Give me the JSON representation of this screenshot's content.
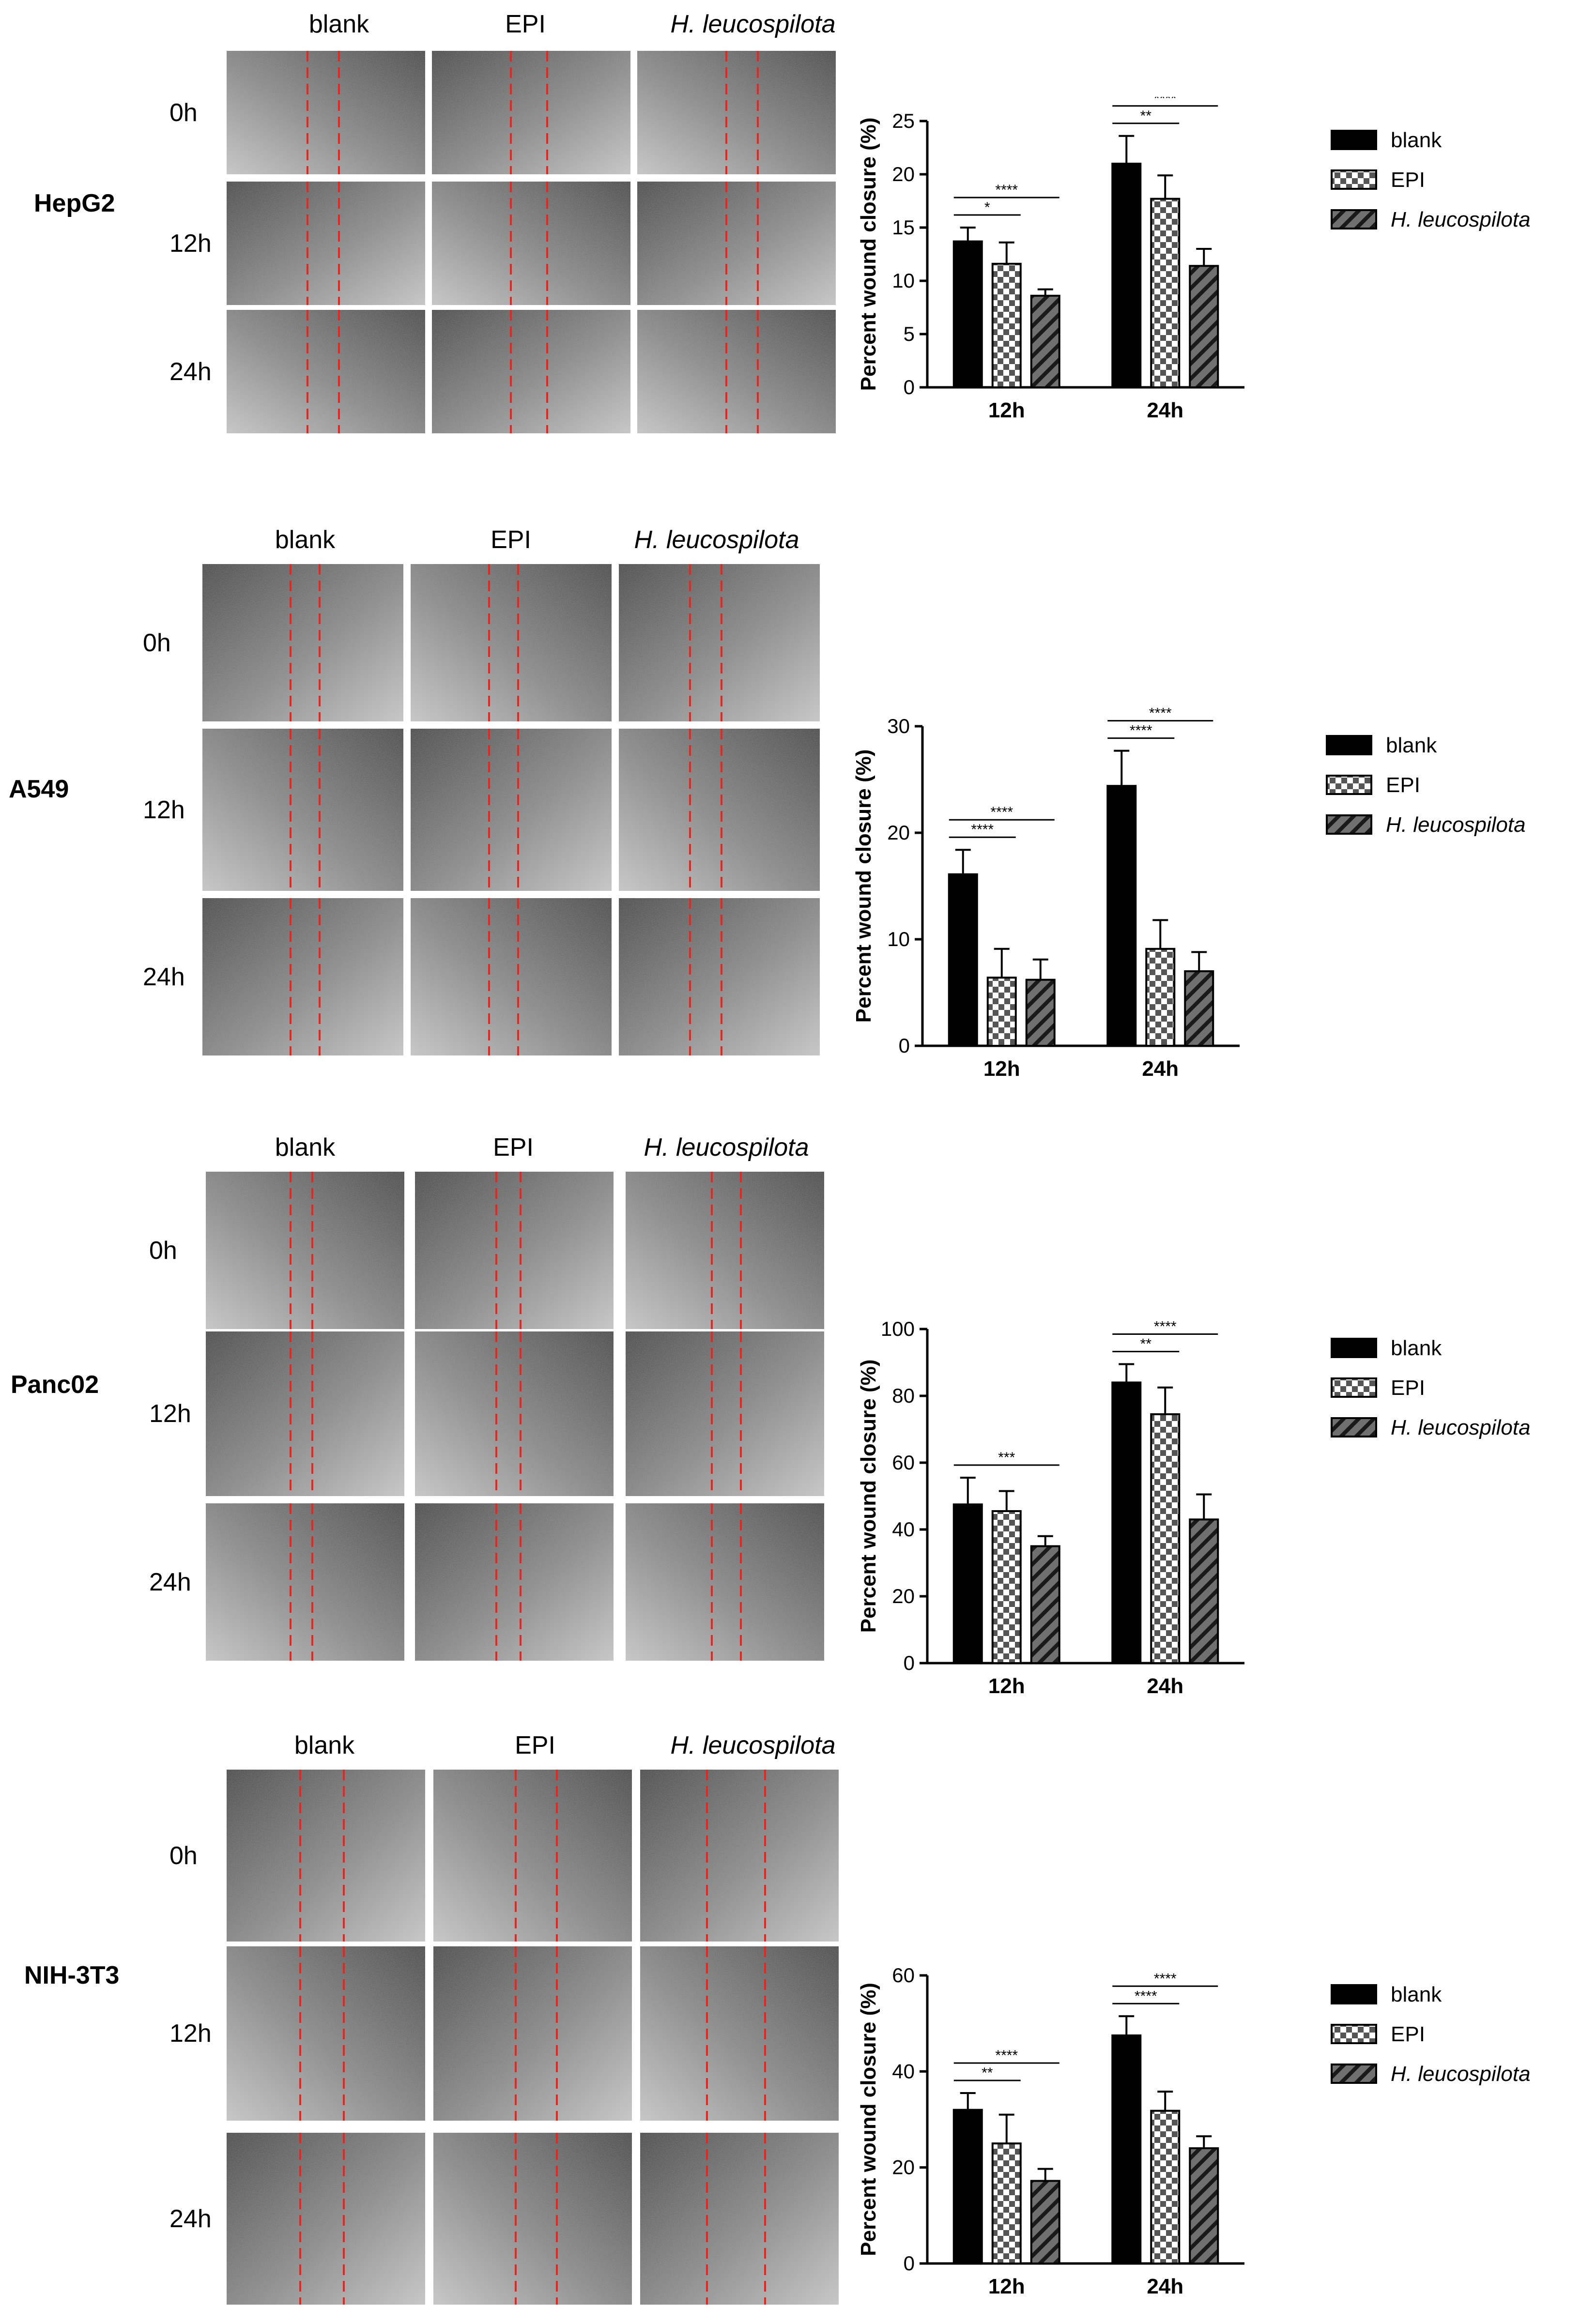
{
  "figure": {
    "columns": [
      "blank",
      "EPI",
      "H. leucospilota"
    ],
    "timepoints": [
      "0h",
      "12h",
      "24h"
    ]
  },
  "panels": [
    {
      "cell_line": "HepG2",
      "columns": [
        "blank",
        "EPI",
        "H. leucospilota"
      ],
      "times": [
        "0h",
        "12h",
        "24h"
      ]
    },
    {
      "cell_line": "A549",
      "columns": [
        "blank",
        "EPI",
        "H. leucospilota"
      ],
      "times": [
        "0h",
        "12h",
        "24h"
      ]
    },
    {
      "cell_line": "Panc02",
      "columns": [
        "blank",
        "EPI",
        "H. leucospilota"
      ],
      "times": [
        "0h",
        "12h",
        "24h"
      ]
    },
    {
      "cell_line": "NIH-3T3",
      "columns": [
        "blank",
        "EPI",
        "H. leucospilota"
      ],
      "times": [
        "0h",
        "12h",
        "24h"
      ]
    }
  ],
  "colors": {
    "blank": "#000000",
    "wound_line": "#e8261f",
    "axis": "#000000"
  },
  "chart_data": [
    {
      "type": "bar",
      "panel": "HepG2",
      "categories": [
        "12h",
        "24h"
      ],
      "ylabel": "Percent wound closure (%)",
      "ylim": [
        0,
        25
      ],
      "yticks": [
        0,
        5,
        10,
        15,
        20,
        25
      ],
      "legend": "right",
      "series": [
        {
          "name": "blank",
          "values": [
            13.7,
            21.0
          ],
          "errors": [
            1.3,
            2.6
          ],
          "pattern": "solid"
        },
        {
          "name": "EPI",
          "values": [
            11.6,
            17.7
          ],
          "errors": [
            2.0,
            2.2
          ],
          "pattern": "checker"
        },
        {
          "name": "H. leucospilota",
          "values": [
            8.6,
            11.4
          ],
          "errors": [
            0.6,
            1.6
          ],
          "pattern": "diagonal"
        }
      ],
      "significance": [
        {
          "category": "12h",
          "from": "blank",
          "to": "EPI",
          "label": "*"
        },
        {
          "category": "12h",
          "from": "blank",
          "to": "H. leucospilota",
          "label": "****"
        },
        {
          "category": "24h",
          "from": "blank",
          "to": "EPI",
          "label": "**"
        },
        {
          "category": "24h",
          "from": "blank",
          "to": "H. leucospilota",
          "label": "****"
        }
      ]
    },
    {
      "type": "bar",
      "panel": "A549",
      "categories": [
        "12h",
        "24h"
      ],
      "ylabel": "Percent wound closure (%)",
      "ylim": [
        0,
        30
      ],
      "yticks": [
        0,
        10,
        20,
        30
      ],
      "legend": "right",
      "series": [
        {
          "name": "blank",
          "values": [
            16.1,
            24.4
          ],
          "errors": [
            2.3,
            3.3
          ],
          "pattern": "solid"
        },
        {
          "name": "EPI",
          "values": [
            6.4,
            9.1
          ],
          "errors": [
            2.7,
            2.7
          ],
          "pattern": "checker"
        },
        {
          "name": "H. leucospilota",
          "values": [
            6.2,
            7.0
          ],
          "errors": [
            1.9,
            1.8
          ],
          "pattern": "diagonal"
        }
      ],
      "significance": [
        {
          "category": "12h",
          "from": "blank",
          "to": "EPI",
          "label": "****"
        },
        {
          "category": "12h",
          "from": "blank",
          "to": "H. leucospilota",
          "label": "****"
        },
        {
          "category": "24h",
          "from": "blank",
          "to": "EPI",
          "label": "****"
        },
        {
          "category": "24h",
          "from": "blank",
          "to": "H. leucospilota",
          "label": "****"
        }
      ]
    },
    {
      "type": "bar",
      "panel": "Panc02",
      "categories": [
        "12h",
        "24h"
      ],
      "ylabel": "Percent wound closure (%)",
      "ylim": [
        0,
        100
      ],
      "yticks": [
        0,
        20,
        40,
        60,
        80,
        100
      ],
      "legend": "right",
      "series": [
        {
          "name": "blank",
          "values": [
            47.5,
            84.0
          ],
          "errors": [
            8.0,
            5.5
          ],
          "pattern": "solid"
        },
        {
          "name": "EPI",
          "values": [
            45.5,
            74.5
          ],
          "errors": [
            6.0,
            8.0
          ],
          "pattern": "checker"
        },
        {
          "name": "H. leucospilota",
          "values": [
            35.0,
            43.0
          ],
          "errors": [
            3.0,
            7.5
          ],
          "pattern": "diagonal"
        }
      ],
      "significance": [
        {
          "category": "12h",
          "from": "blank",
          "to": "H. leucospilota",
          "label": "***"
        },
        {
          "category": "24h",
          "from": "blank",
          "to": "EPI",
          "label": "**"
        },
        {
          "category": "24h",
          "from": "blank",
          "to": "H. leucospilota",
          "label": "****"
        }
      ]
    },
    {
      "type": "bar",
      "panel": "NIH-3T3",
      "categories": [
        "12h",
        "24h"
      ],
      "ylabel": "Percent wound closure (%)",
      "ylim": [
        0,
        60
      ],
      "yticks": [
        0,
        20,
        40,
        60
      ],
      "legend": "right",
      "series": [
        {
          "name": "blank",
          "values": [
            32.0,
            47.5
          ],
          "errors": [
            3.5,
            4.0
          ],
          "pattern": "solid"
        },
        {
          "name": "EPI",
          "values": [
            25.0,
            31.8
          ],
          "errors": [
            6.0,
            4.0
          ],
          "pattern": "checker"
        },
        {
          "name": "H. leucospilota",
          "values": [
            17.2,
            24.0
          ],
          "errors": [
            2.5,
            2.5
          ],
          "pattern": "diagonal"
        }
      ],
      "significance": [
        {
          "category": "12h",
          "from": "blank",
          "to": "EPI",
          "label": "**"
        },
        {
          "category": "12h",
          "from": "blank",
          "to": "H. leucospilota",
          "label": "****"
        },
        {
          "category": "24h",
          "from": "blank",
          "to": "EPI",
          "label": "****"
        },
        {
          "category": "24h",
          "from": "blank",
          "to": "H. leucospilota",
          "label": "****"
        }
      ]
    }
  ]
}
